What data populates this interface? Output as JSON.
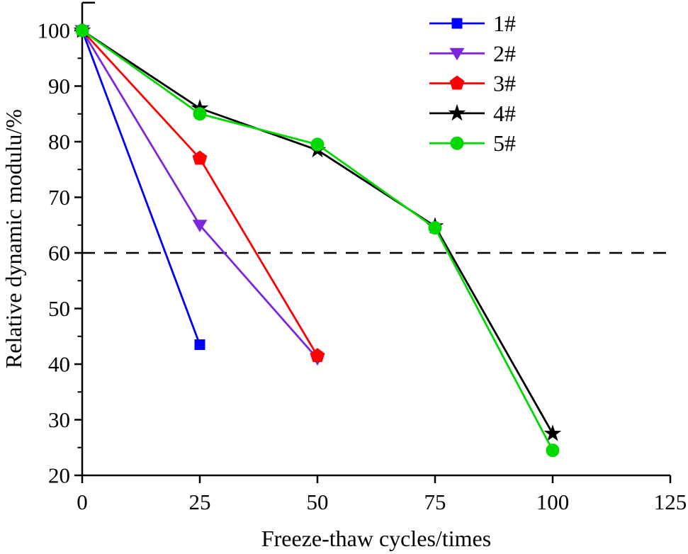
{
  "chart_data": {
    "type": "line",
    "title": "",
    "xlabel": "Freeze-thaw cycles/times",
    "ylabel": "Relative dynamic modulu/%",
    "xlim": [
      0,
      125
    ],
    "ylim": [
      20,
      105
    ],
    "xticks": [
      0,
      25,
      50,
      75,
      100,
      125
    ],
    "yticks": [
      20,
      30,
      40,
      50,
      60,
      70,
      80,
      90,
      100
    ],
    "y_minor_ticks": [
      25,
      35,
      45,
      55,
      65,
      75,
      85,
      95
    ],
    "grid": false,
    "legend_position": "top-right",
    "axis_color": "#000000",
    "reference_line": {
      "y": 60,
      "style": "dashed",
      "color": "#000000"
    },
    "series": [
      {
        "name": "1#",
        "color": "#0000ff",
        "marker": "square",
        "x": [
          0,
          25
        ],
        "y": [
          100,
          43.5
        ]
      },
      {
        "name": "2#",
        "color": "#7d26dd",
        "marker": "triangle-down",
        "x": [
          0,
          25,
          50
        ],
        "y": [
          100,
          65,
          41
        ]
      },
      {
        "name": "3#",
        "color": "#ff0000",
        "marker": "pentagon",
        "x": [
          0,
          25,
          50
        ],
        "y": [
          100,
          77,
          41.5
        ]
      },
      {
        "name": "4#",
        "color": "#000000",
        "marker": "star",
        "x": [
          0,
          25,
          50,
          75,
          100
        ],
        "y": [
          100,
          86,
          78.5,
          64.8,
          27.5
        ]
      },
      {
        "name": "5#",
        "color": "#00d800",
        "marker": "circle",
        "x": [
          0,
          25,
          50,
          75,
          100
        ],
        "y": [
          100,
          85,
          79.5,
          64.5,
          24.5
        ]
      }
    ]
  }
}
